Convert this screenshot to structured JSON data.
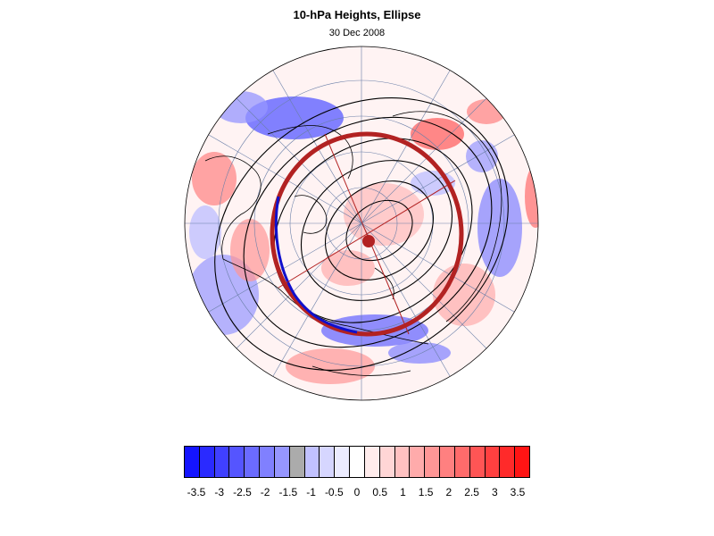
{
  "title": "10-hPa Heights, Ellipse",
  "subtitle": "30 Dec 2008",
  "map": {
    "projection": "polar-stereographic-north",
    "shading": "height anomaly",
    "contour_color": "#000000",
    "ellipse_color": "#b22222",
    "ellipse_highlight_color": "#1010cc",
    "center_marker_color": "#b22222"
  },
  "colorbar": {
    "colors": [
      "#1414ff",
      "#2a2aff",
      "#4040ff",
      "#5555ff",
      "#6b6bff",
      "#8080ff",
      "#9696ff",
      "#abababff",
      "#c1c1ff",
      "#d6d6ff",
      "#ececff",
      "#ffffff",
      "#ffecec",
      "#ffd6d6",
      "#ffc1c1",
      "#ffabab",
      "#ff9696",
      "#ff8080",
      "#ff6b6b",
      "#ff5555",
      "#ff4040",
      "#ff2a2a",
      "#ff1414"
    ],
    "labels": [
      "-3.5",
      "-3",
      "-2.5",
      "-2",
      "-1.5",
      "-1",
      "-0.5",
      "0",
      "0.5",
      "1",
      "1.5",
      "2",
      "2.5",
      "3",
      "3.5"
    ]
  }
}
